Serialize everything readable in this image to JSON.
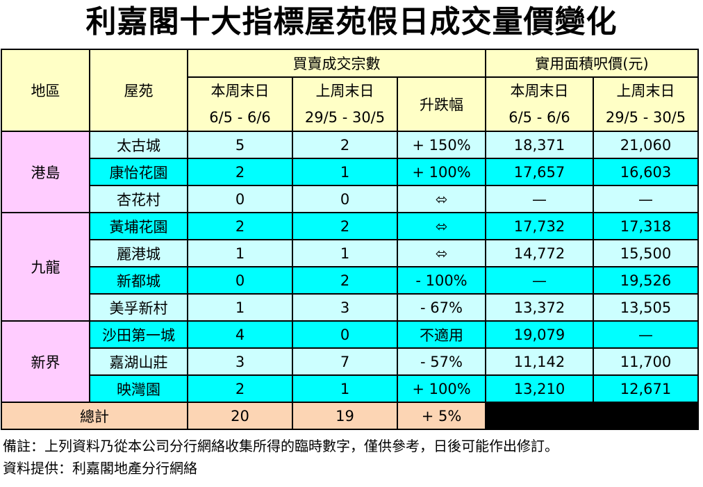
{
  "title": "利嘉閣十大指標屋苑假日成交量價變化",
  "headers": {
    "region": "地區",
    "estate": "屋苑",
    "transactions_group": "買賣成交宗數",
    "price_group": "實用面積呎價(元)",
    "this_weekend": "本周末日",
    "this_weekend_dates": "6/5 - 6/6",
    "last_weekend": "上周末日",
    "last_weekend_dates": "29/5 - 30/5",
    "change": "升跌幅"
  },
  "regions": [
    {
      "name": "港島",
      "rows": [
        {
          "estate": "太古城",
          "tx_this": "5",
          "tx_last": "2",
          "change": "+ 150%",
          "price_this": "18,371",
          "price_last": "21,060"
        },
        {
          "estate": "康怡花園",
          "tx_this": "2",
          "tx_last": "1",
          "change": "+ 100%",
          "price_this": "17,657",
          "price_last": "16,603"
        },
        {
          "estate": "杏花村",
          "tx_this": "0",
          "tx_last": "0",
          "change": "⬄",
          "price_this": "—",
          "price_last": "—"
        }
      ]
    },
    {
      "name": "九龍",
      "rows": [
        {
          "estate": "黃埔花園",
          "tx_this": "2",
          "tx_last": "2",
          "change": "⬄",
          "price_this": "17,732",
          "price_last": "17,318"
        },
        {
          "estate": "麗港城",
          "tx_this": "1",
          "tx_last": "1",
          "change": "⬄",
          "price_this": "14,772",
          "price_last": "15,500"
        },
        {
          "estate": "新都城",
          "tx_this": "0",
          "tx_last": "2",
          "change": "- 100%",
          "price_this": "—",
          "price_last": "19,526"
        },
        {
          "estate": "美孚新村",
          "tx_this": "1",
          "tx_last": "3",
          "change": "- 67%",
          "price_this": "13,372",
          "price_last": "13,505"
        }
      ]
    },
    {
      "name": "新界",
      "rows": [
        {
          "estate": "沙田第一城",
          "tx_this": "4",
          "tx_last": "0",
          "change": "不適用",
          "price_this": "19,079",
          "price_last": "—"
        },
        {
          "estate": "嘉湖山莊",
          "tx_this": "3",
          "tx_last": "7",
          "change": "- 57%",
          "price_this": "11,142",
          "price_last": "11,700"
        },
        {
          "estate": "映灣園",
          "tx_this": "2",
          "tx_last": "1",
          "change": "+ 100%",
          "price_this": "13,210",
          "price_last": "12,671"
        }
      ]
    }
  ],
  "total": {
    "label": "總計",
    "tx_this": "20",
    "tx_last": "19",
    "change": "+ 5%"
  },
  "notes": [
    "備註：上列資料乃從本公司分行網絡收集所得的臨時數字，僅供參考，日後可能作出修訂。",
    "資料提供：利嘉閣地產分行網絡"
  ],
  "colors": {
    "header_bg": "#ffffc6",
    "region_bg": "#ffccff",
    "row_light_bg": "#ccffff",
    "row_cyan_bg": "#00ffff",
    "total_bg": "#fcd5b4"
  }
}
